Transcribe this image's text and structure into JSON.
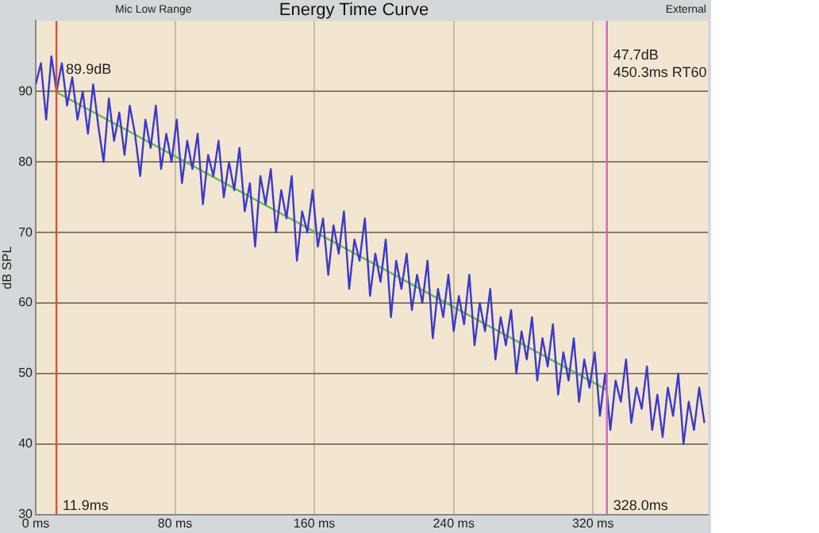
{
  "chart_data": {
    "type": "line",
    "title": "Energy Time Curve",
    "ylabel": "dB SPL",
    "annotations": [
      "Mic Low Range",
      "External",
      {
        "text": "89.9dB",
        "x": 11.9,
        "y": 89.9
      },
      "47.7dB",
      "450.3ms RT60"
    ],
    "xlim": [
      0,
      386
    ],
    "ylim": [
      30,
      100
    ],
    "xticks": [
      {
        "value": 0,
        "label": "0 ms"
      },
      {
        "value": 80,
        "label": "80 ms"
      },
      {
        "value": 160,
        "label": "160 ms"
      },
      {
        "value": 240,
        "label": "240 ms"
      },
      {
        "value": 320,
        "label": "320 ms"
      }
    ],
    "yticks": [
      30,
      40,
      50,
      60,
      70,
      80,
      90
    ],
    "grid": true,
    "marker": "none",
    "line_style": "solid",
    "ref_lines": [
      {
        "axis": "x",
        "value": 11.9,
        "label": "11.9ms",
        "color": "#cc5544"
      },
      {
        "axis": "x",
        "value": 328,
        "label": "328.0ms",
        "color": "#cc66cc"
      }
    ],
    "series": [
      {
        "color": "#3a3acc",
        "x": [
          0,
          3,
          6,
          9,
          12,
          15,
          18,
          21,
          24,
          27,
          30,
          33,
          36,
          39,
          42,
          45,
          48,
          51,
          54,
          57,
          60,
          63,
          66,
          69,
          72,
          75,
          78,
          81,
          84,
          87,
          90,
          93,
          96,
          99,
          102,
          105,
          108,
          111,
          114,
          117,
          120,
          123,
          126,
          129,
          132,
          135,
          138,
          141,
          144,
          147,
          150,
          153,
          156,
          159,
          162,
          165,
          168,
          171,
          174,
          177,
          180,
          183,
          186,
          189,
          192,
          195,
          198,
          201,
          204,
          207,
          210,
          213,
          216,
          219,
          222,
          225,
          228,
          231,
          234,
          237,
          240,
          243,
          246,
          249,
          252,
          255,
          258,
          261,
          264,
          267,
          270,
          273,
          276,
          279,
          282,
          285,
          288,
          291,
          294,
          297,
          300,
          303,
          306,
          309,
          312,
          315,
          318,
          321,
          324,
          327,
          330,
          333,
          336,
          339,
          342,
          345,
          348,
          351,
          354,
          357,
          360,
          363,
          366,
          369,
          372,
          375,
          378,
          381,
          384
        ],
        "values": [
          91,
          94,
          86,
          95,
          90,
          94,
          88,
          92,
          86,
          90,
          84,
          91,
          85,
          80,
          89,
          83,
          87,
          81,
          88,
          84,
          78,
          86,
          82,
          88,
          79,
          84,
          80,
          86,
          77,
          83,
          79,
          84,
          74,
          81,
          78,
          83,
          75,
          80,
          76,
          82,
          73,
          77,
          68,
          78,
          74,
          79,
          70,
          76,
          72,
          78,
          66,
          73,
          70,
          76,
          68,
          72,
          64,
          71,
          67,
          73,
          62,
          69,
          66,
          72,
          61,
          67,
          63,
          69,
          58,
          66,
          62,
          67,
          59,
          64,
          60,
          66,
          55,
          62,
          58,
          64,
          56,
          61,
          57,
          64,
          54,
          60,
          56,
          62,
          52,
          58,
          54,
          59,
          50,
          56,
          52,
          58,
          49,
          55,
          51,
          57,
          47,
          53,
          49,
          55,
          46,
          52,
          48,
          53,
          44,
          50,
          42,
          49,
          46,
          52,
          43,
          48,
          45,
          51,
          42,
          47,
          41,
          48,
          44,
          50,
          40,
          46,
          42,
          48,
          43
        ]
      },
      {
        "color": "#66bb44",
        "x": [
          11.9,
          328
        ],
        "values": [
          89.9,
          47.7
        ]
      }
    ]
  }
}
